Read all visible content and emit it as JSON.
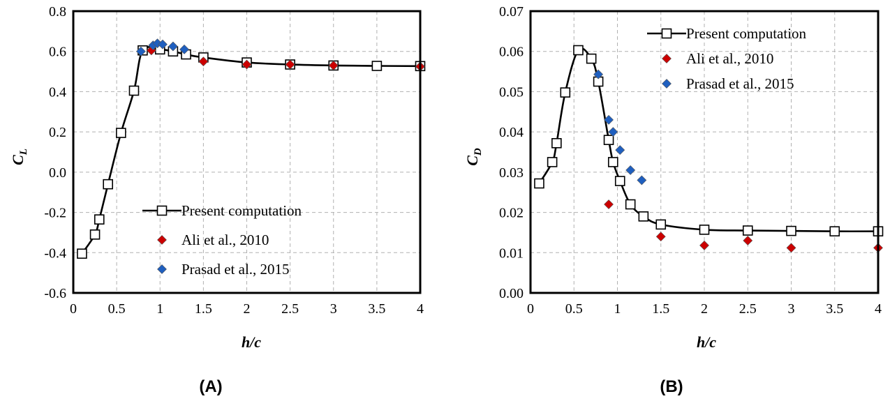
{
  "chart_data": [
    {
      "type": "scatter",
      "panel_label": "(A)",
      "xlabel": "h/c",
      "ylabel_main": "C",
      "ylabel_sub": "L",
      "xlim": [
        0,
        4
      ],
      "ylim": [
        -0.6,
        0.8
      ],
      "xticks": [
        0,
        0.5,
        1,
        1.5,
        2,
        2.5,
        3,
        3.5,
        4
      ],
      "xtick_labels": [
        "0",
        "0.5",
        "1",
        "1.5",
        "2",
        "2.5",
        "3",
        "3.5",
        "4"
      ],
      "yticks": [
        -0.6,
        -0.4,
        -0.2,
        0.0,
        0.2,
        0.4,
        0.6,
        0.8
      ],
      "ytick_labels": [
        "-0.6",
        "-0.4",
        "-0.2",
        "0.0",
        "0.2",
        "0.4",
        "0.6",
        "0.8"
      ],
      "grid": true,
      "legend_position": "bottom-right",
      "series": [
        {
          "name": "Present computation",
          "style": "line-square",
          "color": "#000000",
          "x": [
            0.1,
            0.25,
            0.3,
            0.4,
            0.55,
            0.7,
            0.8,
            1.0,
            1.15,
            1.3,
            1.5,
            2.0,
            2.5,
            3.0,
            3.5,
            4.0
          ],
          "y": [
            -0.405,
            -0.31,
            -0.235,
            -0.06,
            0.195,
            0.405,
            0.605,
            0.61,
            0.6,
            0.585,
            0.57,
            0.545,
            0.535,
            0.53,
            0.528,
            0.527
          ]
        },
        {
          "name": "Ali et al., 2010",
          "style": "diamond",
          "color": "#cc0000",
          "x": [
            0.9,
            1.5,
            2.0,
            2.5,
            3.0,
            4.0
          ],
          "y": [
            0.605,
            0.55,
            0.535,
            0.535,
            0.53,
            0.525
          ]
        },
        {
          "name": "Prasad et al., 2015",
          "style": "diamond",
          "color": "#1f5fbf",
          "x": [
            0.78,
            0.92,
            0.97,
            1.03,
            1.15,
            1.28
          ],
          "y": [
            0.6,
            0.63,
            0.64,
            0.635,
            0.625,
            0.61
          ]
        }
      ]
    },
    {
      "type": "scatter",
      "panel_label": "(B)",
      "xlabel": "h/c",
      "ylabel_main": "C",
      "ylabel_sub": "D",
      "xlim": [
        0,
        4
      ],
      "ylim": [
        0,
        0.07
      ],
      "xticks": [
        0,
        0.5,
        1,
        1.5,
        2,
        2.5,
        3,
        3.5,
        4
      ],
      "xtick_labels": [
        "0",
        "0.5",
        "1",
        "1.5",
        "2",
        "2.5",
        "3",
        "3.5",
        "4"
      ],
      "yticks": [
        0,
        0.01,
        0.02,
        0.03,
        0.04,
        0.05,
        0.06,
        0.07
      ],
      "ytick_labels": [
        "0.00",
        "0.01",
        "0.02",
        "0.03",
        "0.04",
        "0.05",
        "0.06",
        "0.07"
      ],
      "grid": true,
      "legend_position": "top-right",
      "series": [
        {
          "name": "Present computation",
          "style": "line-square",
          "color": "#000000",
          "x": [
            0.1,
            0.25,
            0.3,
            0.4,
            0.55,
            0.7,
            0.78,
            0.9,
            0.95,
            1.03,
            1.15,
            1.3,
            1.5,
            2.0,
            2.5,
            3.0,
            3.5,
            4.0
          ],
          "y": [
            0.0272,
            0.0325,
            0.0372,
            0.0498,
            0.0603,
            0.0582,
            0.0525,
            0.038,
            0.0325,
            0.0278,
            0.022,
            0.019,
            0.017,
            0.0157,
            0.0155,
            0.0154,
            0.0153,
            0.0153
          ]
        },
        {
          "name": "Ali et al., 2010",
          "style": "diamond",
          "color": "#cc0000",
          "x": [
            0.9,
            1.5,
            2.0,
            2.5,
            3.0,
            4.0
          ],
          "y": [
            0.022,
            0.014,
            0.0118,
            0.013,
            0.0112,
            0.0112
          ]
        },
        {
          "name": "Prasad et al., 2015",
          "style": "diamond",
          "color": "#1f5fbf",
          "x": [
            0.78,
            0.9,
            0.95,
            1.03,
            1.15,
            1.28
          ],
          "y": [
            0.0543,
            0.043,
            0.04,
            0.0355,
            0.0305,
            0.028
          ]
        }
      ]
    }
  ]
}
